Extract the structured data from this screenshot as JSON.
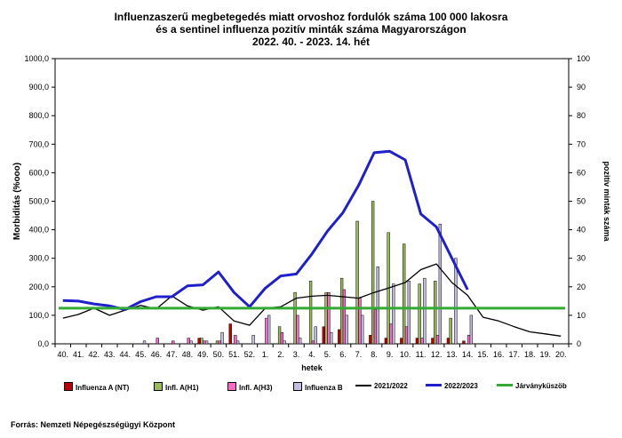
{
  "title_lines": [
    "Influenzaszerű megbetegedés miatt orvoshoz fordulók száma 100 000 lakosra",
    "és a sentinel influenza pozitív minták száma Magyarországon",
    "2022. 40. - 2023. 14. hét"
  ],
  "source": "Forrás: Nemzeti Népegészségügyi Központ",
  "chart_data": {
    "type": "bar",
    "title": "Influenzaszerű megbetegedés miatt orvoshoz fordulók száma 100 000 lakosra és a sentinel influenza pozitív minták száma Magyarországon 2022. 40. - 2023. 14. hét",
    "xlabel": "hetek",
    "ylabel": "Morbiditás (%ooo)",
    "ylabel_right": "pozitív minták száma",
    "ylim": [
      0,
      1000
    ],
    "ylim_right": [
      0,
      100
    ],
    "y_ticks": [
      "0,0",
      "100,0",
      "200,0",
      "300,0",
      "400,0",
      "500,0",
      "600,0",
      "700,0",
      "800,0",
      "900,0",
      "1000,0"
    ],
    "y_ticks_right": [
      "0",
      "10",
      "20",
      "30",
      "40",
      "50",
      "60",
      "70",
      "80",
      "90",
      "100"
    ],
    "categories": [
      "40.",
      "41.",
      "42.",
      "43.",
      "44.",
      "45.",
      "46.",
      "47.",
      "48.",
      "49.",
      "50.",
      "51.",
      "52.",
      "1.",
      "2.",
      "3.",
      "4.",
      "5.",
      "6.",
      "7.",
      "8.",
      "9.",
      "10.",
      "11.",
      "12.",
      "13.",
      "14.",
      "15.",
      "16.",
      "17.",
      "18.",
      "19.",
      "20."
    ],
    "bar_series": [
      {
        "name": "Influenza A (NT)",
        "color": "#c00000",
        "values": [
          0,
          0,
          0,
          0,
          0,
          0,
          0,
          0,
          0,
          2,
          0,
          7,
          0,
          0,
          0,
          0,
          0,
          6,
          5,
          0,
          3,
          2,
          2,
          2,
          2,
          2,
          1,
          0,
          0,
          0,
          0,
          0,
          0
        ]
      },
      {
        "name": "Infl. A(H1)",
        "color": "#9bbb59",
        "values": [
          0,
          0,
          0,
          0,
          0,
          0,
          0,
          0,
          0,
          2,
          1,
          0,
          0,
          0,
          6,
          18,
          22,
          18,
          23,
          43,
          50,
          39,
          35,
          21,
          22,
          9,
          0,
          0,
          0,
          0,
          0,
          0,
          0
        ]
      },
      {
        "name": "Infl. A(H3)",
        "color": "#ff66cc",
        "values": [
          0,
          0,
          0,
          0,
          0,
          0,
          2,
          1,
          2,
          1,
          1,
          3,
          0,
          9,
          4,
          10,
          1,
          18,
          19,
          16,
          12,
          7,
          6,
          2,
          3,
          0,
          3,
          0,
          0,
          0,
          0,
          0,
          0
        ]
      },
      {
        "name": "Influenza B",
        "color": "#c3bde0",
        "values": [
          0,
          0,
          0,
          0,
          0,
          1,
          0,
          0,
          1,
          1,
          4,
          1,
          3,
          10,
          1,
          2,
          6,
          4,
          10,
          10,
          27,
          21,
          22,
          23,
          42,
          30,
          10,
          0,
          0,
          0,
          0,
          0,
          0
        ]
      }
    ],
    "line_series": [
      {
        "name": "2021/2022",
        "color": "#000000",
        "values": [
          90,
          103,
          125,
          100,
          118,
          135,
          122,
          168,
          133,
          118,
          130,
          80,
          65,
          125,
          130,
          160,
          167,
          170,
          165,
          160,
          180,
          197,
          215,
          260,
          280,
          215,
          170,
          93,
          80,
          60,
          42,
          35,
          27
        ]
      },
      {
        "name": "2022/2023",
        "color": "#1f1fcc",
        "values": [
          152,
          150,
          140,
          133,
          120,
          148,
          165,
          165,
          203,
          207,
          252,
          180,
          130,
          195,
          238,
          245,
          315,
          395,
          460,
          555,
          670,
          675,
          645,
          455,
          410,
          300,
          190,
          null,
          null,
          null,
          null,
          null,
          null
        ]
      },
      {
        "name": "Járványküszöb",
        "color": "#33aa33",
        "values": [
          125,
          125,
          125,
          125,
          125,
          125,
          125,
          125,
          125,
          125,
          125,
          125,
          125,
          125,
          125,
          125,
          125,
          125,
          125,
          125,
          125,
          125,
          125,
          125,
          125,
          125,
          125,
          125,
          125,
          125,
          125,
          125,
          125
        ]
      }
    ],
    "legend_position": "bottom"
  }
}
